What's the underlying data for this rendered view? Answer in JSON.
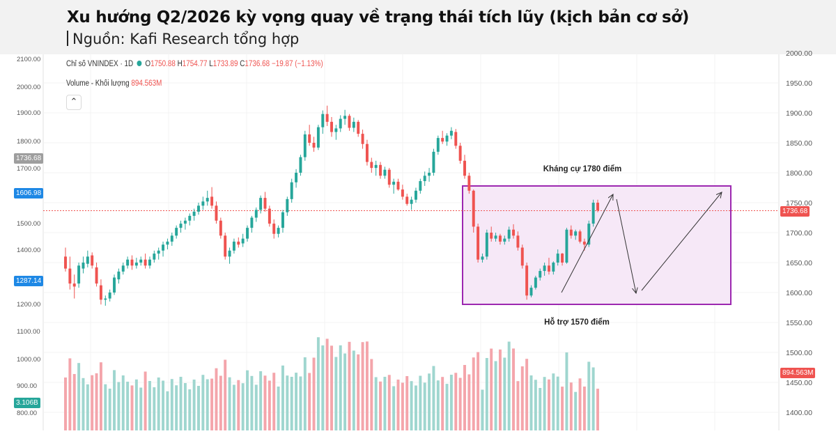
{
  "header": {
    "title": "Xu hướng Q2/2026 kỳ vọng quay về trạng thái tích lũy (kịch bản cơ sở)",
    "subtitle": "Nguồn: Kafi Research tổng hợp"
  },
  "legend": {
    "symbol": "Chỉ số VNINDEX · 1D",
    "open_label": "O",
    "open": "1750.88",
    "high_label": "H",
    "high": "1754.77",
    "low_label": "L",
    "low": "1733.89",
    "close_label": "C",
    "close": "1736.68",
    "change": "−19.87 (−1.13%)",
    "volume_label": "Volume - Khối lượng",
    "volume_value": "894.563M",
    "collapse_icon": "chevron-up"
  },
  "colors": {
    "up": "#26a69a",
    "down": "#ef5350",
    "up_volume": "#9fd6cf",
    "down_volume": "#f4a5ab",
    "range_box": "#9c27b0",
    "range_fill": "#f6e8f7",
    "price_line": "#ef5350",
    "left_badge": "#1e88e5"
  },
  "badges": {
    "left_current": "1736.68",
    "left_blue": "1606.98",
    "left_blue2": "1287.14",
    "left_volume": "3.106B",
    "right_price": "1736.68",
    "right_volume": "894.563M"
  },
  "annotations": {
    "resistance": "Kháng cự 1780 điểm",
    "support": "Hỗ trợ 1570 điểm"
  },
  "chart_data": {
    "type": "candlestick",
    "title": "Xu hướng Q2/2026 kỳ vọng quay về trạng thái tích lũy (kịch bản cơ sở)",
    "left_axis_ticks": [
      "2100.00",
      "2000.00",
      "1900.00",
      "1800.00",
      "1700.00",
      "1500.00",
      "1400.00",
      "1200.00",
      "1100.00",
      "1000.00",
      "900.00",
      "800.00"
    ],
    "right_axis_ticks": [
      "2000.00",
      "1950.00",
      "1900.00",
      "1850.00",
      "1800.00",
      "1750.00",
      "1700.00",
      "1650.00",
      "1600.00",
      "1550.00",
      "1500.00",
      "1450.00",
      "1400.00"
    ],
    "right_axis_range": [
      1400,
      2000
    ],
    "last_close": 1736.68,
    "support": 1570,
    "resistance": 1780,
    "candles": [
      [
        1660,
        1675,
        1635,
        1640
      ],
      [
        1640,
        1660,
        1605,
        1615
      ],
      [
        1615,
        1630,
        1590,
        1610
      ],
      [
        1615,
        1650,
        1608,
        1645
      ],
      [
        1640,
        1660,
        1632,
        1650
      ],
      [
        1648,
        1670,
        1642,
        1660
      ],
      [
        1662,
        1667,
        1640,
        1645
      ],
      [
        1642,
        1650,
        1610,
        1615
      ],
      [
        1612,
        1622,
        1580,
        1588
      ],
      [
        1588,
        1595,
        1578,
        1590
      ],
      [
        1590,
        1605,
        1585,
        1600
      ],
      [
        1600,
        1630,
        1596,
        1625
      ],
      [
        1622,
        1640,
        1615,
        1635
      ],
      [
        1635,
        1650,
        1630,
        1645
      ],
      [
        1645,
        1660,
        1640,
        1655
      ],
      [
        1655,
        1662,
        1638,
        1645
      ],
      [
        1645,
        1658,
        1640,
        1650
      ],
      [
        1650,
        1660,
        1645,
        1655
      ],
      [
        1655,
        1665,
        1640,
        1645
      ],
      [
        1645,
        1660,
        1640,
        1655
      ],
      [
        1655,
        1670,
        1650,
        1665
      ],
      [
        1665,
        1675,
        1655,
        1670
      ],
      [
        1670,
        1685,
        1660,
        1680
      ],
      [
        1680,
        1690,
        1672,
        1685
      ],
      [
        1685,
        1700,
        1678,
        1695
      ],
      [
        1695,
        1712,
        1690,
        1708
      ],
      [
        1708,
        1720,
        1700,
        1715
      ],
      [
        1715,
        1725,
        1705,
        1720
      ],
      [
        1720,
        1732,
        1712,
        1728
      ],
      [
        1728,
        1740,
        1720,
        1735
      ],
      [
        1735,
        1750,
        1730,
        1745
      ],
      [
        1745,
        1760,
        1738,
        1752
      ],
      [
        1752,
        1770,
        1745,
        1758
      ],
      [
        1760,
        1776,
        1740,
        1745
      ],
      [
        1745,
        1752,
        1715,
        1720
      ],
      [
        1720,
        1725,
        1690,
        1695
      ],
      [
        1695,
        1700,
        1655,
        1660
      ],
      [
        1660,
        1675,
        1648,
        1670
      ],
      [
        1670,
        1690,
        1665,
        1685
      ],
      [
        1685,
        1692,
        1675,
        1680
      ],
      [
        1682,
        1698,
        1676,
        1690
      ],
      [
        1690,
        1712,
        1685,
        1708
      ],
      [
        1708,
        1728,
        1700,
        1725
      ],
      [
        1725,
        1742,
        1718,
        1738
      ],
      [
        1738,
        1762,
        1732,
        1758
      ],
      [
        1758,
        1768,
        1735,
        1740
      ],
      [
        1740,
        1745,
        1710,
        1715
      ],
      [
        1715,
        1722,
        1690,
        1698
      ],
      [
        1698,
        1712,
        1692,
        1708
      ],
      [
        1708,
        1738,
        1700,
        1734
      ],
      [
        1734,
        1760,
        1728,
        1756
      ],
      [
        1756,
        1790,
        1750,
        1784
      ],
      [
        1784,
        1806,
        1775,
        1800
      ],
      [
        1800,
        1830,
        1795,
        1826
      ],
      [
        1826,
        1870,
        1820,
        1864
      ],
      [
        1864,
        1880,
        1845,
        1850
      ],
      [
        1850,
        1860,
        1835,
        1842
      ],
      [
        1842,
        1880,
        1838,
        1876
      ],
      [
        1876,
        1904,
        1865,
        1898
      ],
      [
        1898,
        1912,
        1878,
        1885
      ],
      [
        1885,
        1893,
        1860,
        1868
      ],
      [
        1868,
        1880,
        1855,
        1874
      ],
      [
        1874,
        1896,
        1868,
        1890
      ],
      [
        1890,
        1905,
        1880,
        1895
      ],
      [
        1895,
        1898,
        1870,
        1875
      ],
      [
        1875,
        1892,
        1868,
        1885
      ],
      [
        1885,
        1888,
        1860,
        1865
      ],
      [
        1865,
        1872,
        1840,
        1848
      ],
      [
        1848,
        1855,
        1812,
        1818
      ],
      [
        1818,
        1825,
        1800,
        1808
      ],
      [
        1808,
        1820,
        1795,
        1813
      ],
      [
        1813,
        1818,
        1790,
        1795
      ],
      [
        1795,
        1810,
        1790,
        1805
      ],
      [
        1805,
        1808,
        1775,
        1780
      ],
      [
        1780,
        1790,
        1765,
        1785
      ],
      [
        1785,
        1790,
        1770,
        1772
      ],
      [
        1772,
        1780,
        1755,
        1760
      ],
      [
        1760,
        1765,
        1745,
        1748
      ],
      [
        1748,
        1760,
        1738,
        1755
      ],
      [
        1755,
        1775,
        1750,
        1770
      ],
      [
        1770,
        1790,
        1765,
        1786
      ],
      [
        1786,
        1802,
        1778,
        1795
      ],
      [
        1795,
        1808,
        1785,
        1800
      ],
      [
        1800,
        1840,
        1795,
        1835
      ],
      [
        1835,
        1862,
        1830,
        1858
      ],
      [
        1858,
        1870,
        1848,
        1852
      ],
      [
        1852,
        1866,
        1845,
        1862
      ],
      [
        1862,
        1876,
        1856,
        1870
      ],
      [
        1868,
        1873,
        1840,
        1845
      ],
      [
        1845,
        1850,
        1815,
        1820
      ],
      [
        1820,
        1830,
        1790,
        1795
      ],
      [
        1795,
        1800,
        1765,
        1770
      ],
      [
        1770,
        1772,
        1700,
        1710
      ],
      [
        1710,
        1715,
        1650,
        1655
      ],
      [
        1655,
        1665,
        1650,
        1660
      ],
      [
        1660,
        1705,
        1655,
        1700
      ],
      [
        1700,
        1710,
        1685,
        1690
      ],
      [
        1690,
        1700,
        1685,
        1695
      ],
      [
        1695,
        1698,
        1680,
        1685
      ],
      [
        1685,
        1695,
        1680,
        1690
      ],
      [
        1690,
        1710,
        1685,
        1705
      ],
      [
        1705,
        1714,
        1690,
        1695
      ],
      [
        1695,
        1702,
        1670,
        1675
      ],
      [
        1675,
        1680,
        1640,
        1645
      ],
      [
        1645,
        1650,
        1588,
        1595
      ],
      [
        1595,
        1612,
        1592,
        1608
      ],
      [
        1608,
        1628,
        1605,
        1625
      ],
      [
        1625,
        1640,
        1620,
        1636
      ],
      [
        1636,
        1650,
        1628,
        1645
      ],
      [
        1645,
        1658,
        1630,
        1635
      ],
      [
        1635,
        1652,
        1630,
        1650
      ],
      [
        1650,
        1672,
        1645,
        1665
      ],
      [
        1665,
        1666,
        1645,
        1650
      ],
      [
        1650,
        1708,
        1648,
        1705
      ],
      [
        1705,
        1712,
        1690,
        1695
      ],
      [
        1695,
        1705,
        1688,
        1702
      ],
      [
        1702,
        1705,
        1682,
        1685
      ],
      [
        1685,
        1690,
        1670,
        1680
      ],
      [
        1680,
        1720,
        1676,
        1715
      ],
      [
        1715,
        1755,
        1710,
        1750
      ],
      [
        1750,
        1755,
        1734,
        1737
      ]
    ],
    "volume_note": "Volume bars scaled on left axis (800–1000 range shown)"
  }
}
